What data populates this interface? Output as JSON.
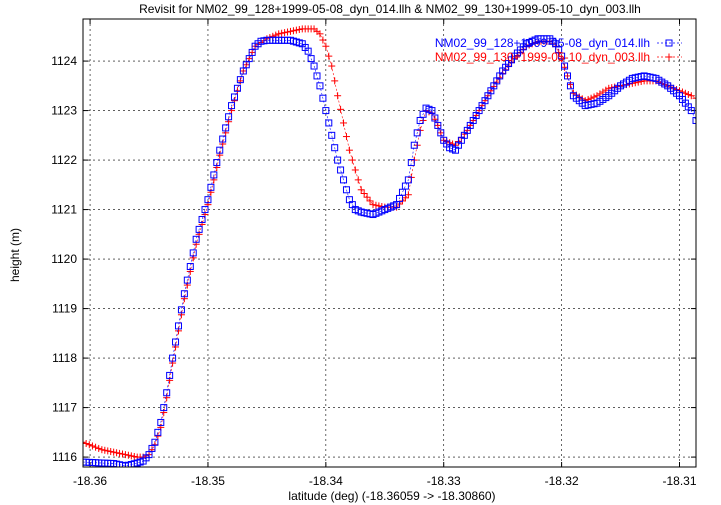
{
  "chart_data": {
    "type": "scatter",
    "title": "Revisit for NM02_99_128+1999-05-08_dyn_014.llh & NM02_99_130+1999-05-10_dyn_003.llh",
    "xlabel": "latitude (deg) (-18.36059 -> -18.30860)",
    "ylabel": "height (m)",
    "xlim": [
      -18.3606,
      -18.3086
    ],
    "ylim": [
      1115.8,
      1124.85
    ],
    "x_ticks": [
      -18.36,
      -18.35,
      -18.34,
      -18.33,
      -18.32,
      -18.31
    ],
    "x_tick_labels": [
      "-18.36",
      "-18.35",
      "-18.34",
      "-18.33",
      "-18.32",
      "-18.31"
    ],
    "y_ticks": [
      1116,
      1117,
      1118,
      1119,
      1120,
      1121,
      1122,
      1123,
      1124
    ],
    "y_tick_labels": [
      "1116",
      "1117",
      "1118",
      "1119",
      "1120",
      "1121",
      "1122",
      "1123",
      "1124"
    ],
    "grid": true,
    "legend_position": "top-right",
    "series": [
      {
        "name": "NM02_99_128+1999-05-08_dyn_014.llh",
        "color": "#0000ff",
        "marker": "square",
        "x": [
          -18.3606,
          -18.359,
          -18.358,
          -18.357,
          -18.3565,
          -18.356,
          -18.3555,
          -18.355,
          -18.3545,
          -18.354,
          -18.3535,
          -18.353,
          -18.352,
          -18.351,
          -18.35,
          -18.349,
          -18.348,
          -18.347,
          -18.346,
          -18.3455,
          -18.345,
          -18.344,
          -18.343,
          -18.342,
          -18.3415,
          -18.341,
          -18.3405,
          -18.34,
          -18.3395,
          -18.339,
          -18.338,
          -18.3375,
          -18.337,
          -18.336,
          -18.335,
          -18.334,
          -18.333,
          -18.3325,
          -18.332,
          -18.3315,
          -18.331,
          -18.3305,
          -18.33,
          -18.3295,
          -18.329,
          -18.328,
          -18.327,
          -18.326,
          -18.325,
          -18.324,
          -18.323,
          -18.322,
          -18.321,
          -18.3205,
          -18.32,
          -18.3195,
          -18.319,
          -18.318,
          -18.317,
          -18.316,
          -18.315,
          -18.314,
          -18.313,
          -18.312,
          -18.311,
          -18.31,
          -18.309,
          -18.3086
        ],
        "y": [
          1115.9,
          1115.88,
          1115.87,
          1115.82,
          1115.85,
          1115.88,
          1115.92,
          1116.05,
          1116.3,
          1116.7,
          1117.3,
          1118.0,
          1119.3,
          1120.4,
          1121.2,
          1122.2,
          1123.1,
          1123.8,
          1124.3,
          1124.4,
          1124.42,
          1124.42,
          1124.42,
          1124.35,
          1124.2,
          1123.9,
          1123.5,
          1123.0,
          1122.5,
          1122.0,
          1121.2,
          1121.0,
          1120.95,
          1120.9,
          1121.0,
          1121.1,
          1121.6,
          1122.3,
          1122.8,
          1123.05,
          1123.0,
          1122.7,
          1122.4,
          1122.25,
          1122.2,
          1122.6,
          1123.0,
          1123.4,
          1123.8,
          1124.1,
          1124.35,
          1124.45,
          1124.45,
          1124.35,
          1124.1,
          1123.7,
          1123.3,
          1123.1,
          1123.15,
          1123.3,
          1123.5,
          1123.65,
          1123.7,
          1123.65,
          1123.5,
          1123.3,
          1123.0,
          1122.8
        ]
      },
      {
        "name": "NM02_99_130+1999-05-10_dyn_003.llh",
        "color": "#ff0000",
        "marker": "plus",
        "x": [
          -18.3606,
          -18.359,
          -18.358,
          -18.357,
          -18.356,
          -18.3555,
          -18.355,
          -18.3545,
          -18.354,
          -18.3535,
          -18.353,
          -18.352,
          -18.351,
          -18.35,
          -18.349,
          -18.348,
          -18.347,
          -18.346,
          -18.345,
          -18.344,
          -18.343,
          -18.342,
          -18.341,
          -18.3405,
          -18.34,
          -18.3395,
          -18.339,
          -18.338,
          -18.337,
          -18.336,
          -18.335,
          -18.334,
          -18.333,
          -18.3325,
          -18.332,
          -18.3315,
          -18.331,
          -18.3305,
          -18.33,
          -18.329,
          -18.328,
          -18.327,
          -18.326,
          -18.325,
          -18.324,
          -18.323,
          -18.322,
          -18.321,
          -18.3205,
          -18.32,
          -18.3195,
          -18.319,
          -18.318,
          -18.317,
          -18.316,
          -18.315,
          -18.314,
          -18.313,
          -18.312,
          -18.311,
          -18.31,
          -18.309,
          -18.3086
        ],
        "y": [
          1116.3,
          1116.15,
          1116.1,
          1116.05,
          1116.0,
          1116.0,
          1116.05,
          1116.25,
          1116.6,
          1117.2,
          1117.9,
          1119.2,
          1120.3,
          1121.1,
          1122.1,
          1123.0,
          1123.8,
          1124.3,
          1124.45,
          1124.55,
          1124.6,
          1124.65,
          1124.65,
          1124.55,
          1124.3,
          1123.9,
          1123.3,
          1122.2,
          1121.4,
          1121.1,
          1121.05,
          1121.05,
          1121.3,
          1122.0,
          1122.6,
          1123.0,
          1122.95,
          1122.7,
          1122.4,
          1122.3,
          1122.6,
          1123.0,
          1123.4,
          1123.75,
          1124.05,
          1124.3,
          1124.4,
          1124.4,
          1124.3,
          1124.05,
          1123.7,
          1123.35,
          1123.2,
          1123.3,
          1123.45,
          1123.5,
          1123.55,
          1123.6,
          1123.6,
          1123.5,
          1123.4,
          1123.3,
          1123.25
        ]
      }
    ]
  }
}
